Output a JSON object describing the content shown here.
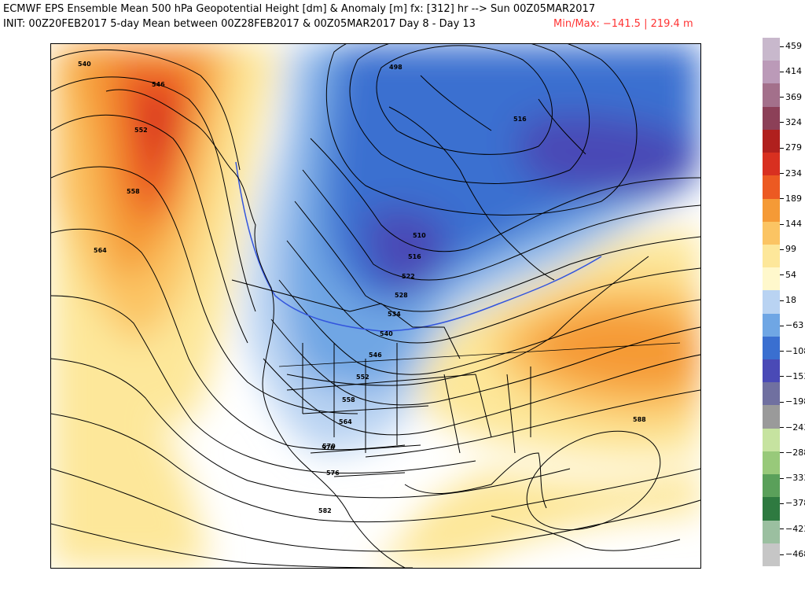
{
  "header": {
    "line1": "ECMWF EPS Ensemble Mean 500 hPa Geopotential Height [dm] & Anomaly [m] fx: [312] hr --> Sun 00Z05MAR2017",
    "line2": "INIT: 00Z20FEB2017 5-day Mean between 00Z28FEB2017 & 00Z05MAR2017    Day 8 - Day 13",
    "minmax": "Min/Max: −141.5 | 219.4 m"
  },
  "colorbar": {
    "labels": [
      "459",
      "414",
      "369",
      "324",
      "279",
      "234",
      "189",
      "144",
      "99",
      "54",
      "18",
      "−63",
      "−108",
      "−153",
      "−198",
      "−243",
      "−288",
      "−333",
      "−378",
      "−423",
      "−468"
    ],
    "colors": [
      "#c8b8cc",
      "#bb9ab8",
      "#a3708b",
      "#8c4058",
      "#b0201e",
      "#d83020",
      "#ec5a22",
      "#f59a36",
      "#fbc463",
      "#fde79a",
      "#fff8cc",
      "#b9d3f2",
      "#6fa6e4",
      "#3a6fd0",
      "#4a4ab6",
      "#7070a0",
      "#9a9a9a",
      "#c6e3a0",
      "#98c97a",
      "#5aa05a",
      "#2e7a40",
      "#9bbfa0",
      "#c6c6c6"
    ]
  },
  "contour_labels": [
    "540",
    "546",
    "552",
    "558",
    "564",
    "570",
    "576",
    "582",
    "588",
    "510",
    "516",
    "522",
    "528",
    "534",
    "540",
    "546",
    "552",
    "558",
    "564",
    "570",
    "498",
    "516"
  ]
}
